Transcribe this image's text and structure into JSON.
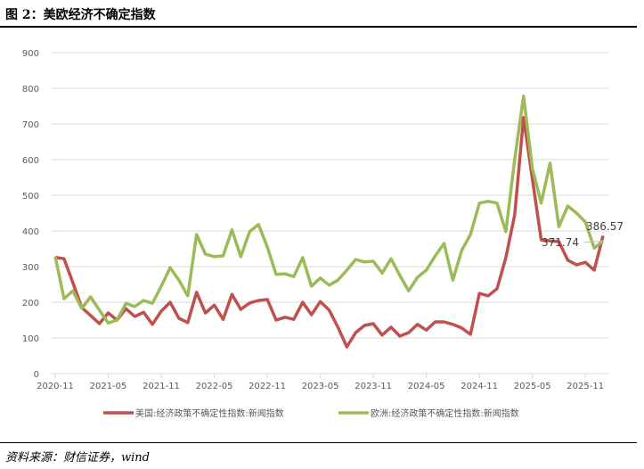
{
  "title": "图 2：美欧经济不确定指数",
  "source": "资料来源：财信证券，wind",
  "chart_data": {
    "type": "line",
    "title": "",
    "xlabel": "",
    "ylabel": "",
    "ylim": [
      0,
      900
    ],
    "yticks": [
      0,
      100,
      200,
      300,
      400,
      500,
      600,
      700,
      800,
      900
    ],
    "xtick_labels": [
      "2020-11",
      "2021-05",
      "2021-11",
      "2022-05",
      "2022-11",
      "2023-05",
      "2023-11",
      "2024-05",
      "2024-11",
      "2025-05",
      "2025-11"
    ],
    "x_start": "2020-11",
    "x_end": "2026-01",
    "grid": true,
    "legend_position": "bottom",
    "series": [
      {
        "name": "美国:经济政策不确定性指数:新闻指数",
        "color": "#C0504D",
        "values": [
          326,
          322,
          255,
          185,
          163,
          140,
          170,
          150,
          182,
          160,
          172,
          138,
          175,
          200,
          155,
          143,
          228,
          170,
          192,
          152,
          222,
          180,
          198,
          205,
          208,
          150,
          158,
          152,
          200,
          165,
          202,
          178,
          130,
          75,
          115,
          135,
          140,
          108,
          130,
          105,
          115,
          138,
          122,
          145,
          145,
          138,
          128,
          110,
          225,
          218,
          238,
          325,
          445,
          718,
          545,
          375,
          372,
          370,
          318,
          305,
          312,
          290,
          386.57
        ]
      },
      {
        "name": "欧洲:经济政策不确定性指数:新闻指数",
        "color": "#9BBB59",
        "values": [
          328,
          210,
          232,
          183,
          215,
          178,
          142,
          150,
          197,
          188,
          205,
          197,
          245,
          297,
          262,
          218,
          390,
          335,
          328,
          330,
          403,
          328,
          398,
          418,
          355,
          278,
          280,
          272,
          325,
          245,
          268,
          248,
          262,
          290,
          320,
          313,
          315,
          282,
          322,
          275,
          232,
          270,
          290,
          330,
          365,
          262,
          345,
          390,
          478,
          483,
          478,
          398,
          600,
          778,
          575,
          478,
          590,
          412,
          470,
          450,
          425,
          352,
          371.74
        ]
      }
    ],
    "data_labels": [
      "386.57",
      "371.74"
    ]
  }
}
